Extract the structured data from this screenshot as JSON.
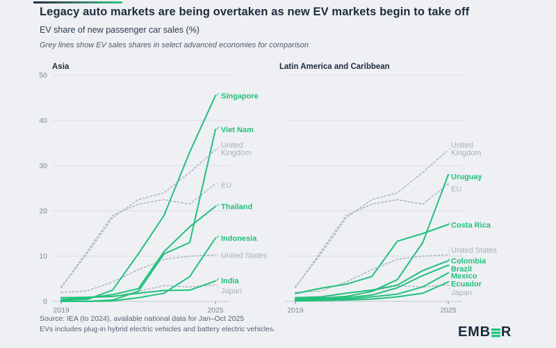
{
  "header": {
    "title": "Legacy auto markets are being overtaken as new EV markets begin to take off",
    "subtitle": "EV share of new passenger car sales (%)",
    "note": "Grey lines show EV sales shares in select advanced economies for comparison"
  },
  "footer": {
    "source": "Source: IEA (to 2024), available national data for Jan–Oct 2025",
    "note": "EVs includes plug-in hybrid electric vehicles and battery electric vehicles."
  },
  "logo": {
    "part1": "EMB",
    "part2": "R"
  },
  "colors": {
    "green": "#22c07b",
    "grey": "#a9b1bd",
    "grid": "#d9dde3",
    "axis": "#c3c9d1",
    "tick_text": "#7c8694",
    "title_text": "#1d2b3c",
    "background": "#eef0f4"
  },
  "chart_data": [
    {
      "type": "line",
      "title": "Asia",
      "x": [
        2019,
        2020,
        2021,
        2022,
        2023,
        2024,
        2025
      ],
      "x_tick_labels": [
        "2019",
        "2025"
      ],
      "ylim": [
        0,
        50
      ],
      "y_ticks": [
        0,
        10,
        20,
        30,
        40,
        50
      ],
      "show_y_tick_labels": true,
      "grid": true,
      "legend_position": "line-end-labels",
      "series": [
        {
          "name": "United Kingdom",
          "role": "comparison",
          "label_lines": [
            "United",
            "Kingdom"
          ],
          "label_v": 34.6,
          "values": [
            3.2,
            10.5,
            18.5,
            22.5,
            24.0,
            28.5,
            33.5
          ]
        },
        {
          "name": "EU",
          "role": "comparison",
          "label_lines": [
            "EU"
          ],
          "label_v": 25.8,
          "values": [
            3.0,
            11.0,
            19.0,
            21.5,
            22.5,
            21.5,
            26.0
          ]
        },
        {
          "name": "United States",
          "role": "comparison",
          "label_lines": [
            "United States"
          ],
          "label_v": 10.2,
          "values": [
            2.0,
            2.3,
            4.3,
            7.0,
            9.3,
            10.0,
            10.3
          ]
        },
        {
          "name": "Japan",
          "role": "comparison",
          "label_lines": [
            "Japan"
          ],
          "label_v": 2.4,
          "values": [
            0.9,
            0.8,
            1.0,
            2.2,
            3.5,
            3.2,
            3.6
          ]
        },
        {
          "name": "Singapore",
          "role": "market",
          "label_lines": [
            "Singapore"
          ],
          "label_v": 45.5,
          "values": [
            0.3,
            0.4,
            2.5,
            10.5,
            19.0,
            33.0,
            45.5
          ]
        },
        {
          "name": "Viet Nam",
          "role": "market",
          "label_lines": [
            "Viet Nam"
          ],
          "label_v": 38.0,
          "values": [
            0.0,
            0.0,
            0.3,
            2.2,
            10.5,
            13.0,
            38.0
          ]
        },
        {
          "name": "Thailand",
          "role": "market",
          "label_lines": [
            "Thailand"
          ],
          "label_v": 21.0,
          "values": [
            0.4,
            0.7,
            1.5,
            2.8,
            11.0,
            16.5,
            21.0
          ]
        },
        {
          "name": "Indonesia",
          "role": "market",
          "label_lines": [
            "Indonesia"
          ],
          "label_v": 14.0,
          "values": [
            0.0,
            0.0,
            0.1,
            0.8,
            1.8,
            5.5,
            14.0
          ]
        },
        {
          "name": "India",
          "role": "market",
          "label_lines": [
            "India"
          ],
          "label_v": 4.6,
          "values": [
            0.8,
            0.9,
            1.1,
            1.8,
            2.4,
            2.5,
            4.5
          ]
        }
      ]
    },
    {
      "type": "line",
      "title": "Latin America and Caribbean",
      "x": [
        2019,
        2020,
        2021,
        2022,
        2023,
        2024,
        2025
      ],
      "x_tick_labels": [
        "2019",
        "2025"
      ],
      "ylim": [
        0,
        50
      ],
      "y_ticks": [
        0,
        10,
        20,
        30,
        40,
        50
      ],
      "show_y_tick_labels": false,
      "grid": true,
      "legend_position": "line-end-labels",
      "series": [
        {
          "name": "United Kingdom",
          "role": "comparison",
          "label_lines": [
            "United",
            "Kingdom"
          ],
          "label_v": 34.6,
          "values": [
            3.2,
            10.5,
            18.5,
            22.5,
            24.0,
            28.5,
            33.5
          ]
        },
        {
          "name": "EU",
          "role": "comparison",
          "label_lines": [
            "EU"
          ],
          "label_v": 24.9,
          "values": [
            3.0,
            11.0,
            19.0,
            21.5,
            22.5,
            21.5,
            26.0
          ]
        },
        {
          "name": "United States",
          "role": "comparison",
          "label_lines": [
            "United States"
          ],
          "label_v": 11.4,
          "values": [
            2.0,
            2.3,
            4.3,
            7.0,
            9.3,
            10.0,
            10.3
          ]
        },
        {
          "name": "Japan",
          "role": "comparison",
          "label_lines": [
            "Japan"
          ],
          "label_v": 2.0,
          "values": [
            0.9,
            0.8,
            1.0,
            2.2,
            3.5,
            3.2,
            3.6
          ]
        },
        {
          "name": "Uruguay",
          "role": "market",
          "label_lines": [
            "Uruguay"
          ],
          "label_v": 27.6,
          "values": [
            0.5,
            0.7,
            1.1,
            2.2,
            4.8,
            13.0,
            28.0
          ]
        },
        {
          "name": "Costa Rica",
          "role": "market",
          "label_lines": [
            "Costa Rica"
          ],
          "label_v": 16.9,
          "values": [
            1.7,
            2.9,
            3.8,
            5.5,
            13.3,
            15.0,
            17.0
          ]
        },
        {
          "name": "Colombia",
          "role": "market",
          "label_lines": [
            "Colombia"
          ],
          "label_v": 9.0,
          "values": [
            0.8,
            1.0,
            1.8,
            2.5,
            3.6,
            6.8,
            9.0
          ]
        },
        {
          "name": "Brazil",
          "role": "market",
          "label_lines": [
            "Brazil"
          ],
          "label_v": 7.2,
          "values": [
            0.3,
            0.4,
            0.8,
            1.4,
            3.0,
            5.7,
            8.0
          ]
        },
        {
          "name": "Mexico",
          "role": "market",
          "label_lines": [
            "Mexico"
          ],
          "label_v": 5.7,
          "values": [
            0.2,
            0.3,
            0.5,
            1.0,
            1.6,
            3.2,
            6.3
          ]
        },
        {
          "name": "Ecuador",
          "role": "market",
          "label_lines": [
            "Ecuador"
          ],
          "label_v": 3.9,
          "values": [
            0.1,
            0.2,
            0.3,
            0.5,
            1.0,
            1.8,
            4.3
          ]
        }
      ]
    }
  ]
}
